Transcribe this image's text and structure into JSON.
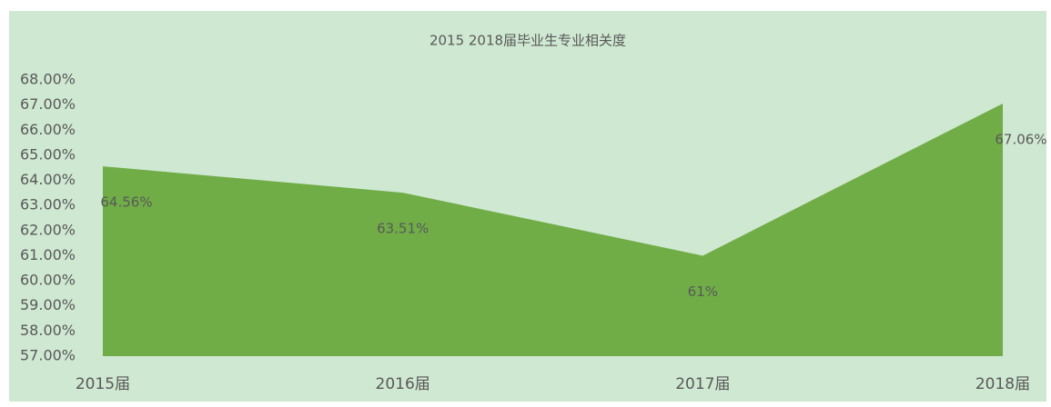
{
  "chart_data": {
    "type": "area",
    "title": "2015 2018届毕业生专业相关度",
    "categories": [
      "2015届",
      "2016届",
      "2017届",
      "2018届"
    ],
    "series": [
      {
        "name": null,
        "color": "#70ad47",
        "values": [
          64.56,
          63.51,
          61,
          67.06
        ],
        "value_labels": [
          "64.56%",
          "63.51%",
          "61%",
          "67.06%"
        ]
      }
    ],
    "ylim": [
      57,
      68
    ],
    "yticks": [
      {
        "value": 57,
        "label": "57.00%"
      },
      {
        "value": 58,
        "label": "58.00%"
      },
      {
        "value": 59,
        "label": "59.00%"
      },
      {
        "value": 60,
        "label": "60.00%"
      },
      {
        "value": 61,
        "label": "61.00%"
      },
      {
        "value": 62,
        "label": "62.00%"
      },
      {
        "value": 63,
        "label": "63.00%"
      },
      {
        "value": 64,
        "label": "64.00%"
      },
      {
        "value": 65,
        "label": "65.00%"
      },
      {
        "value": 66,
        "label": "66.00%"
      },
      {
        "value": 67,
        "label": "67.00%"
      },
      {
        "value": 68,
        "label": "68.00%"
      }
    ],
    "grid": false
  }
}
